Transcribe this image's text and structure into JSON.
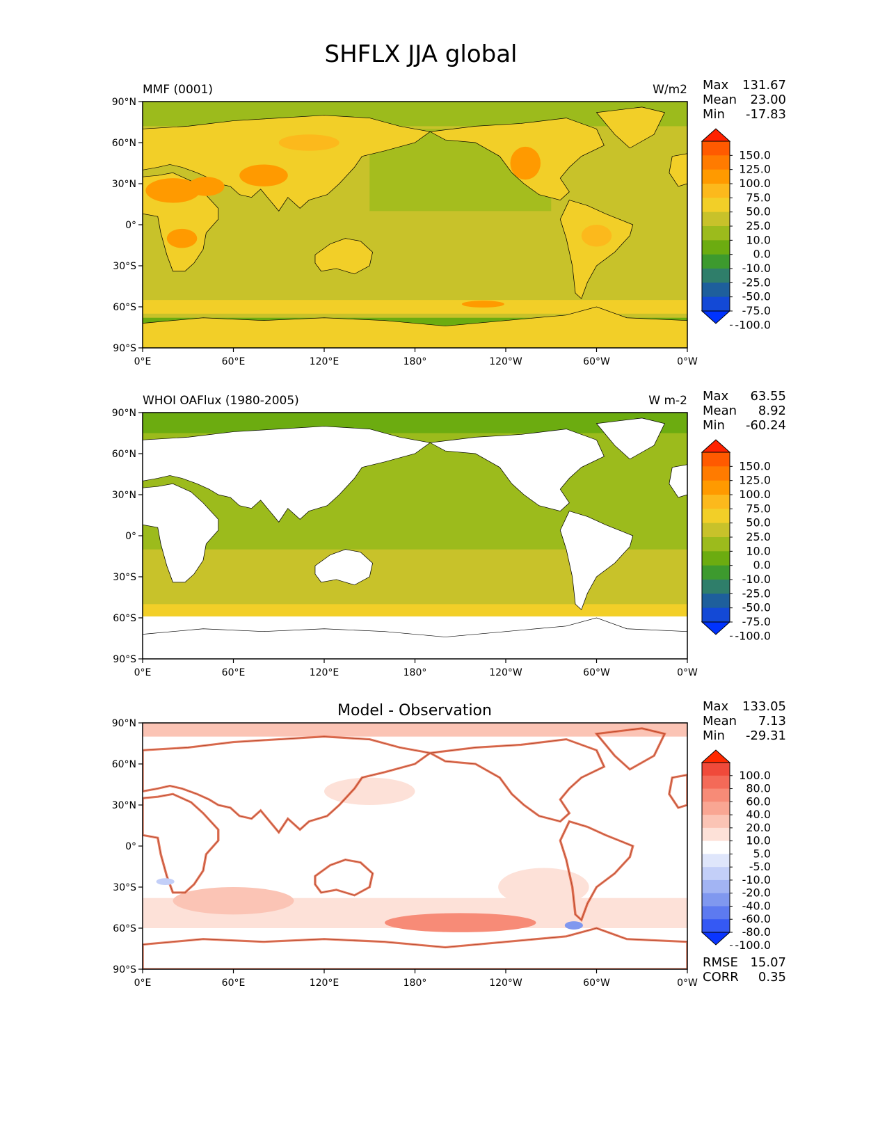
{
  "figure": {
    "title": "SHFLX JJA global",
    "lat_ticks": [
      "90°N",
      "60°N",
      "30°N",
      "0°",
      "30°S",
      "60°S",
      "90°S"
    ],
    "lon_ticks": [
      "0°E",
      "60°E",
      "120°E",
      "180°",
      "120°W",
      "60°W",
      "0°W"
    ]
  },
  "panels": [
    {
      "id": "model",
      "left_title": "MMF (0001)",
      "center_title": "",
      "right_title": "W/m2",
      "stats": [
        {
          "label": "Max",
          "value": "131.67"
        },
        {
          "label": "Mean",
          "value": "23.00"
        },
        {
          "label": "Min",
          "value": "-17.83"
        }
      ],
      "colorbar": {
        "labels": [
          "150.0",
          "125.0",
          "100.0",
          "75.0",
          "50.0",
          "25.0",
          "10.0",
          "0.0",
          "-10.0",
          "-25.0",
          "-50.0",
          "-75.0",
          "-100.0"
        ],
        "colors": [
          "#ff2200",
          "#ff5a00",
          "#ff7b00",
          "#ff9a00",
          "#fcb91c",
          "#f2cf28",
          "#c8c22a",
          "#9cbb1c",
          "#6cac10",
          "#3d9a2e",
          "#2f7e6a",
          "#1e5f9c",
          "#1349d6",
          "#0033ff"
        ]
      },
      "field_summary": {
        "max": 131.67,
        "mean": 23.0,
        "min": -17.83
      },
      "notes_visible": []
    },
    {
      "id": "obs",
      "left_title": "WHOI OAFlux (1980-2005)",
      "center_title": "",
      "right_title": "W m-2",
      "stats": [
        {
          "label": "Max",
          "value": "63.55"
        },
        {
          "label": "Mean",
          "value": "8.92"
        },
        {
          "label": "Min",
          "value": "-60.24"
        }
      ],
      "colorbar": {
        "labels": [
          "150.0",
          "125.0",
          "100.0",
          "75.0",
          "50.0",
          "25.0",
          "10.0",
          "0.0",
          "-10.0",
          "-25.0",
          "-50.0",
          "-75.0",
          "-100.0"
        ],
        "colors": [
          "#ff2200",
          "#ff5a00",
          "#ff7b00",
          "#ff9a00",
          "#fcb91c",
          "#f2cf28",
          "#c8c22a",
          "#9cbb1c",
          "#6cac10",
          "#3d9a2e",
          "#2f7e6a",
          "#1e5f9c",
          "#1349d6",
          "#0033ff"
        ]
      },
      "field_summary": {
        "max": 63.55,
        "mean": 8.92,
        "min": -60.24
      }
    },
    {
      "id": "diff",
      "left_title": "",
      "center_title": "Model - Observation",
      "right_title": "",
      "stats": [
        {
          "label": "Max",
          "value": "133.05"
        },
        {
          "label": "Mean",
          "value": "7.13"
        },
        {
          "label": "Min",
          "value": "-29.31"
        }
      ],
      "colorbar": {
        "labels": [
          "100.0",
          "80.0",
          "60.0",
          "40.0",
          "20.0",
          "10.0",
          "5.0",
          "-5.0",
          "-10.0",
          "-20.0",
          "-40.0",
          "-60.0",
          "-80.0",
          "-100.0"
        ],
        "colors": [
          "#ff2a00",
          "#f04a3a",
          "#f46a58",
          "#f78b77",
          "#f9a693",
          "#fbc4b5",
          "#fde1d8",
          "#ffffff",
          "#dfe6fb",
          "#c3cff8",
          "#a2b4f3",
          "#8098ef",
          "#5d7af0",
          "#3559f4",
          "#0a35ff"
        ]
      },
      "field_summary": {
        "max": 133.05,
        "mean": 7.13,
        "min": -29.31
      },
      "metrics": [
        {
          "label": "RMSE",
          "value": "15.07"
        },
        {
          "label": "CORR",
          "value": "0.35"
        }
      ]
    }
  ],
  "colors": {
    "ocean_model": "#c8c22a",
    "land_model": "#f2cf28",
    "ocean_obs": "#9cbb1c",
    "diff_background": "#ffffff",
    "diff_positive": "#f9a693",
    "coastline": "#000000"
  }
}
